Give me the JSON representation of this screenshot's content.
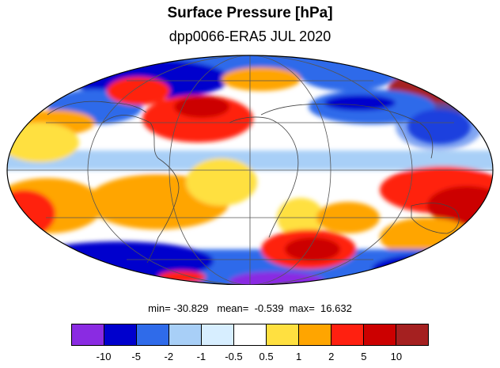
{
  "header": {
    "title": "Surface Pressure [hPa]",
    "subtitle": "dpp0066-ERA5  JUL 2020"
  },
  "stats": {
    "text": "min= -30.829   mean=  -0.539  max=  16.632"
  },
  "legend": {
    "colors": [
      "#8A2BE2",
      "#0000CD",
      "#2F6BEA",
      "#A8CFF7",
      "#D7EEFF",
      "#FFFFFF",
      "#FFE040",
      "#FFA500",
      "#FF2010",
      "#CC0000",
      "#A52020"
    ],
    "tick_labels": [
      "-10",
      "-5",
      "-2",
      "-1",
      "-0.5",
      "0.5",
      "1",
      "2",
      "5",
      "10"
    ]
  },
  "map": {
    "projection": "mollweide",
    "land_outline_color": "#444444",
    "grid_color": "#555555"
  }
}
